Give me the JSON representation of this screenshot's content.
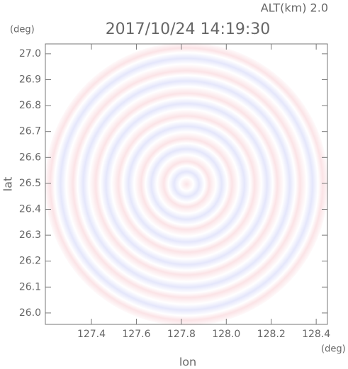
{
  "chart_data": {
    "type": "radar",
    "title": "2017/10/24 14:19:30",
    "subtitle": "ALT(km) 2.0",
    "ylabel": "lat",
    "yunit": "(deg)",
    "xlabel": "lon",
    "xunit": "(deg)",
    "xlim": [
      127.195,
      128.45
    ],
    "ylim": [
      25.956,
      27.038
    ],
    "xticks": [
      127.4,
      127.6,
      127.8,
      {
        "value": 128.0,
        "label": "128.0"
      },
      128.2,
      128.4
    ],
    "yticks": [
      {
        "value": 26.0,
        "label": "26.0"
      },
      26.1,
      26.2,
      26.3,
      26.4,
      26.5,
      26.6,
      26.7,
      26.8,
      26.9,
      {
        "value": 27.0,
        "label": "27.0"
      }
    ],
    "center": [
      127.823,
      26.497
    ],
    "radius": 0.631
  }
}
